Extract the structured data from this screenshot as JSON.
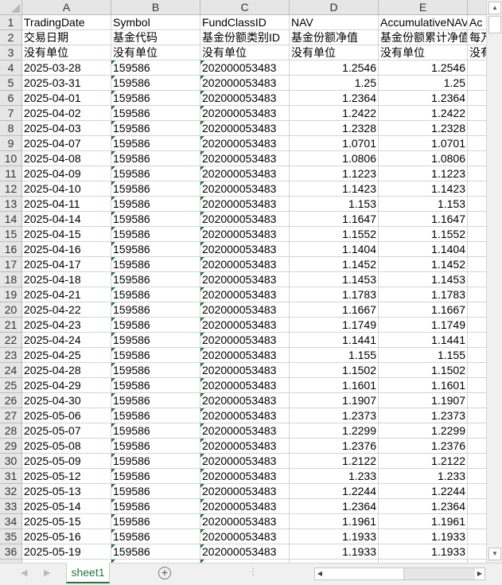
{
  "columns": [
    "A",
    "B",
    "C",
    "D",
    "E",
    ""
  ],
  "header_rows": [
    [
      "TradingDate",
      "Symbol",
      "FundClassID",
      "NAV",
      "AccumulativeNAV",
      "Ac"
    ],
    [
      "交易日期",
      "基金代码",
      "基金份额类别ID",
      "基金份额净值",
      "基金份额累计净值",
      "每万"
    ],
    [
      "没有单位",
      "没有单位",
      "没有单位",
      "没有单位",
      "没有单位",
      "没有"
    ]
  ],
  "rows": [
    [
      "2025-03-28",
      "159586",
      "202000053483",
      "1.2546",
      "1.2546"
    ],
    [
      "2025-03-31",
      "159586",
      "202000053483",
      "1.25",
      "1.25"
    ],
    [
      "2025-04-01",
      "159586",
      "202000053483",
      "1.2364",
      "1.2364"
    ],
    [
      "2025-04-02",
      "159586",
      "202000053483",
      "1.2422",
      "1.2422"
    ],
    [
      "2025-04-03",
      "159586",
      "202000053483",
      "1.2328",
      "1.2328"
    ],
    [
      "2025-04-07",
      "159586",
      "202000053483",
      "1.0701",
      "1.0701"
    ],
    [
      "2025-04-08",
      "159586",
      "202000053483",
      "1.0806",
      "1.0806"
    ],
    [
      "2025-04-09",
      "159586",
      "202000053483",
      "1.1223",
      "1.1223"
    ],
    [
      "2025-04-10",
      "159586",
      "202000053483",
      "1.1423",
      "1.1423"
    ],
    [
      "2025-04-11",
      "159586",
      "202000053483",
      "1.153",
      "1.153"
    ],
    [
      "2025-04-14",
      "159586",
      "202000053483",
      "1.1647",
      "1.1647"
    ],
    [
      "2025-04-15",
      "159586",
      "202000053483",
      "1.1552",
      "1.1552"
    ],
    [
      "2025-04-16",
      "159586",
      "202000053483",
      "1.1404",
      "1.1404"
    ],
    [
      "2025-04-17",
      "159586",
      "202000053483",
      "1.1452",
      "1.1452"
    ],
    [
      "2025-04-18",
      "159586",
      "202000053483",
      "1.1453",
      "1.1453"
    ],
    [
      "2025-04-21",
      "159586",
      "202000053483",
      "1.1783",
      "1.1783"
    ],
    [
      "2025-04-22",
      "159586",
      "202000053483",
      "1.1667",
      "1.1667"
    ],
    [
      "2025-04-23",
      "159586",
      "202000053483",
      "1.1749",
      "1.1749"
    ],
    [
      "2025-04-24",
      "159586",
      "202000053483",
      "1.1441",
      "1.1441"
    ],
    [
      "2025-04-25",
      "159586",
      "202000053483",
      "1.155",
      "1.155"
    ],
    [
      "2025-04-28",
      "159586",
      "202000053483",
      "1.1502",
      "1.1502"
    ],
    [
      "2025-04-29",
      "159586",
      "202000053483",
      "1.1601",
      "1.1601"
    ],
    [
      "2025-04-30",
      "159586",
      "202000053483",
      "1.1907",
      "1.1907"
    ],
    [
      "2025-05-06",
      "159586",
      "202000053483",
      "1.2373",
      "1.2373"
    ],
    [
      "2025-05-07",
      "159586",
      "202000053483",
      "1.2299",
      "1.2299"
    ],
    [
      "2025-05-08",
      "159586",
      "202000053483",
      "1.2376",
      "1.2376"
    ],
    [
      "2025-05-09",
      "159586",
      "202000053483",
      "1.2122",
      "1.2122"
    ],
    [
      "2025-05-12",
      "159586",
      "202000053483",
      "1.233",
      "1.233"
    ],
    [
      "2025-05-13",
      "159586",
      "202000053483",
      "1.2244",
      "1.2244"
    ],
    [
      "2025-05-14",
      "159586",
      "202000053483",
      "1.2364",
      "1.2364"
    ],
    [
      "2025-05-15",
      "159586",
      "202000053483",
      "1.1961",
      "1.1961"
    ],
    [
      "2025-05-16",
      "159586",
      "202000053483",
      "1.1933",
      "1.1933"
    ],
    [
      "2025-05-19",
      "159586",
      "202000053483",
      "1.1933",
      "1.1933"
    ]
  ],
  "sheet_tab": "sheet1",
  "add_sheet": "+",
  "colors": {
    "accent": "#1e7a3c",
    "header_bg": "#e6e6e6",
    "gridline": "#d4d4d4"
  }
}
